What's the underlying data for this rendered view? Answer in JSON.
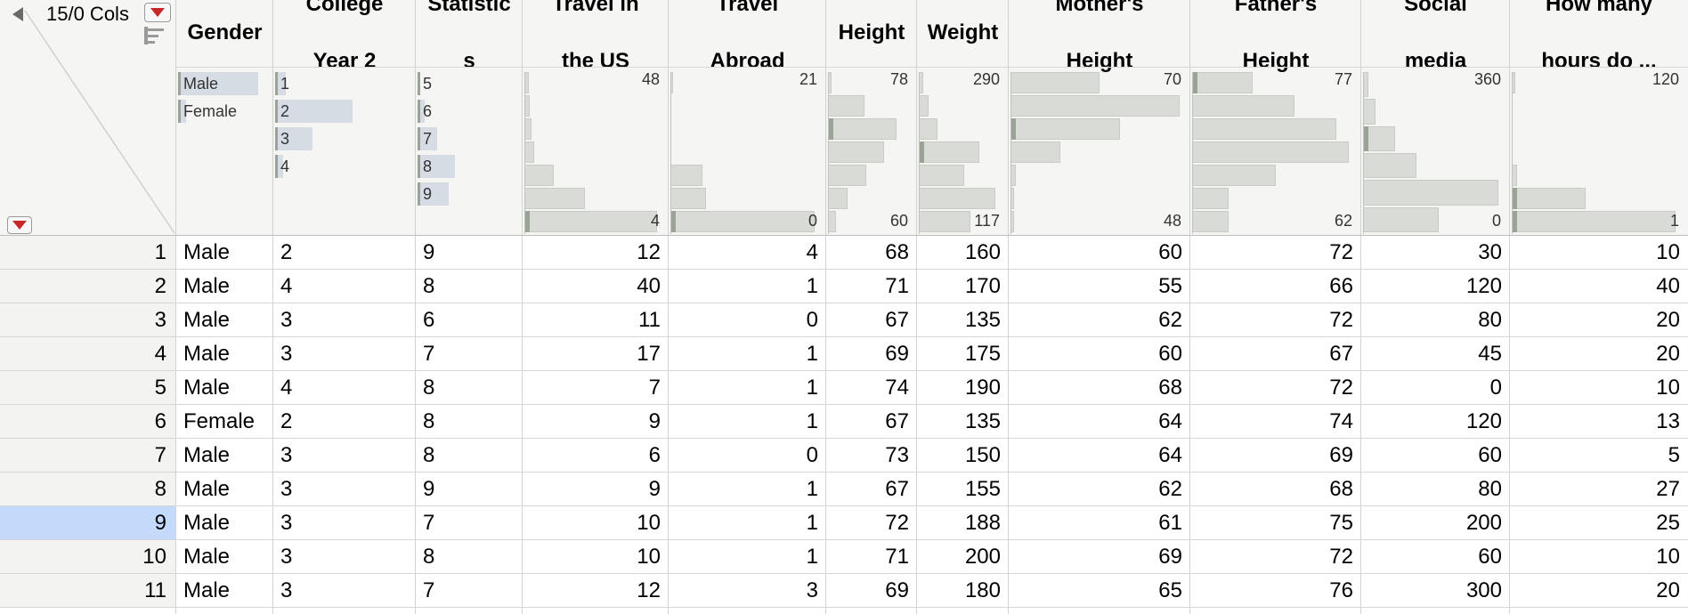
{
  "corner": {
    "cols_label": "15/0 Cols"
  },
  "columns": [
    {
      "key": "gender",
      "title": [
        "Gender"
      ]
    },
    {
      "key": "college",
      "title": [
        "College",
        "Year 2"
      ]
    },
    {
      "key": "stats",
      "title": [
        "Statistic",
        "s"
      ]
    },
    {
      "key": "travel_us",
      "title": [
        "Travel in",
        "the US"
      ]
    },
    {
      "key": "travel_abroad",
      "title": [
        "Travel",
        "Abroad"
      ]
    },
    {
      "key": "height",
      "title": [
        "Height"
      ]
    },
    {
      "key": "weight",
      "title": [
        "Weight"
      ]
    },
    {
      "key": "mother",
      "title": [
        "Mother's",
        "Height"
      ]
    },
    {
      "key": "father",
      "title": [
        "Father's",
        "Height"
      ]
    },
    {
      "key": "social",
      "title": [
        "Social",
        "media"
      ]
    },
    {
      "key": "hours",
      "title": [
        "How many",
        "hours do ..."
      ]
    }
  ],
  "summaries": {
    "gender": {
      "levels": [
        "Male",
        "Female"
      ],
      "proportions": [
        0.91,
        0.09
      ]
    },
    "college": {
      "levels": [
        "1",
        "2",
        "3",
        "4"
      ],
      "proportions": [
        0.08,
        0.58,
        0.28,
        0.06
      ]
    },
    "stats": {
      "levels": [
        "5",
        "6",
        "7",
        "8",
        "9"
      ],
      "proportions": [
        0.03,
        0.07,
        0.2,
        0.38,
        0.32
      ]
    },
    "travel_us": {
      "max": "48",
      "min": "4"
    },
    "travel_abroad": {
      "max": "21",
      "min": "0"
    },
    "height": {
      "max": "78",
      "min": "60"
    },
    "weight": {
      "max": "290",
      "min": "117"
    },
    "mother": {
      "max": "70",
      "min": "48"
    },
    "father": {
      "max": "77",
      "min": "62"
    },
    "social": {
      "max": "360",
      "min": "0"
    },
    "hours": {
      "max": "120",
      "min": "1"
    }
  },
  "rows": [
    {
      "n": "1",
      "gender": "Male",
      "college": "2",
      "stats": "9",
      "travel_us": "12",
      "travel_abroad": "4",
      "height": "68",
      "weight": "160",
      "mother": "60",
      "father": "72",
      "social": "30",
      "hours": "10"
    },
    {
      "n": "2",
      "gender": "Male",
      "college": "4",
      "stats": "8",
      "travel_us": "40",
      "travel_abroad": "1",
      "height": "71",
      "weight": "170",
      "mother": "55",
      "father": "66",
      "social": "120",
      "hours": "40"
    },
    {
      "n": "3",
      "gender": "Male",
      "college": "3",
      "stats": "6",
      "travel_us": "11",
      "travel_abroad": "0",
      "height": "67",
      "weight": "135",
      "mother": "62",
      "father": "72",
      "social": "80",
      "hours": "20"
    },
    {
      "n": "4",
      "gender": "Male",
      "college": "3",
      "stats": "7",
      "travel_us": "17",
      "travel_abroad": "1",
      "height": "69",
      "weight": "175",
      "mother": "60",
      "father": "67",
      "social": "45",
      "hours": "20"
    },
    {
      "n": "5",
      "gender": "Male",
      "college": "4",
      "stats": "8",
      "travel_us": "7",
      "travel_abroad": "1",
      "height": "74",
      "weight": "190",
      "mother": "68",
      "father": "72",
      "social": "0",
      "hours": "10"
    },
    {
      "n": "6",
      "gender": "Female",
      "college": "2",
      "stats": "8",
      "travel_us": "9",
      "travel_abroad": "1",
      "height": "67",
      "weight": "135",
      "mother": "64",
      "father": "74",
      "social": "120",
      "hours": "13"
    },
    {
      "n": "7",
      "gender": "Male",
      "college": "3",
      "stats": "8",
      "travel_us": "6",
      "travel_abroad": "0",
      "height": "73",
      "weight": "150",
      "mother": "64",
      "father": "69",
      "social": "60",
      "hours": "5"
    },
    {
      "n": "8",
      "gender": "Male",
      "college": "3",
      "stats": "9",
      "travel_us": "9",
      "travel_abroad": "1",
      "height": "67",
      "weight": "155",
      "mother": "62",
      "father": "68",
      "social": "80",
      "hours": "27"
    },
    {
      "n": "9",
      "gender": "Male",
      "college": "3",
      "stats": "7",
      "travel_us": "10",
      "travel_abroad": "1",
      "height": "72",
      "weight": "188",
      "mother": "61",
      "father": "75",
      "social": "200",
      "hours": "25"
    },
    {
      "n": "10",
      "gender": "Male",
      "college": "3",
      "stats": "8",
      "travel_us": "10",
      "travel_abroad": "1",
      "height": "71",
      "weight": "200",
      "mother": "69",
      "father": "72",
      "social": "60",
      "hours": "10"
    },
    {
      "n": "11",
      "gender": "Male",
      "college": "3",
      "stats": "7",
      "travel_us": "12",
      "travel_abroad": "3",
      "height": "69",
      "weight": "180",
      "mother": "65",
      "father": "76",
      "social": "300",
      "hours": "20"
    }
  ],
  "selected_row": "9",
  "colors": {
    "selection": "#c4dafa",
    "header_bg": "#f5f5f3",
    "red_arrow": "#c62828"
  }
}
